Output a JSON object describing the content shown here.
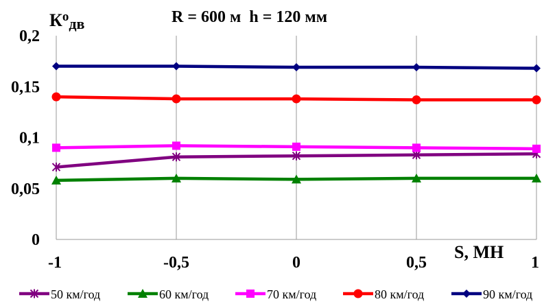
{
  "chart_data": {
    "type": "line",
    "title": "R = 600 м  h = 120 мм",
    "ylabel_main": "К",
    "ylabel_sup": "о",
    "ylabel_sub": "дв",
    "xlabel": "S, МН",
    "x": [
      -1,
      -0.5,
      0,
      0.5,
      1
    ],
    "x_tick_labels": [
      "-1",
      "-0,5",
      "0",
      "0,5",
      "1"
    ],
    "ylim": [
      0,
      0.2
    ],
    "y_ticks": [
      0,
      0.05,
      0.1,
      0.15,
      0.2
    ],
    "y_tick_labels": [
      "0",
      "0,05",
      "0,1",
      "0,15",
      "0,2"
    ],
    "grid": "vertical",
    "legend_position": "bottom",
    "series": [
      {
        "name": "50 км/год",
        "color": "#800080",
        "marker": "asterisk",
        "values": [
          0.071,
          0.081,
          0.082,
          0.083,
          0.084
        ]
      },
      {
        "name": "60 км/год",
        "color": "#008000",
        "marker": "triangle",
        "values": [
          0.058,
          0.06,
          0.059,
          0.06,
          0.06
        ]
      },
      {
        "name": "70 км/год",
        "color": "#ff00ff",
        "marker": "square",
        "values": [
          0.09,
          0.092,
          0.091,
          0.09,
          0.089
        ]
      },
      {
        "name": "80 км/год",
        "color": "#ff0000",
        "marker": "circle",
        "values": [
          0.14,
          0.138,
          0.138,
          0.137,
          0.137
        ]
      },
      {
        "name": "90 км/год",
        "color": "#000080",
        "marker": "diamond",
        "values": [
          0.17,
          0.17,
          0.169,
          0.169,
          0.168
        ]
      }
    ]
  }
}
